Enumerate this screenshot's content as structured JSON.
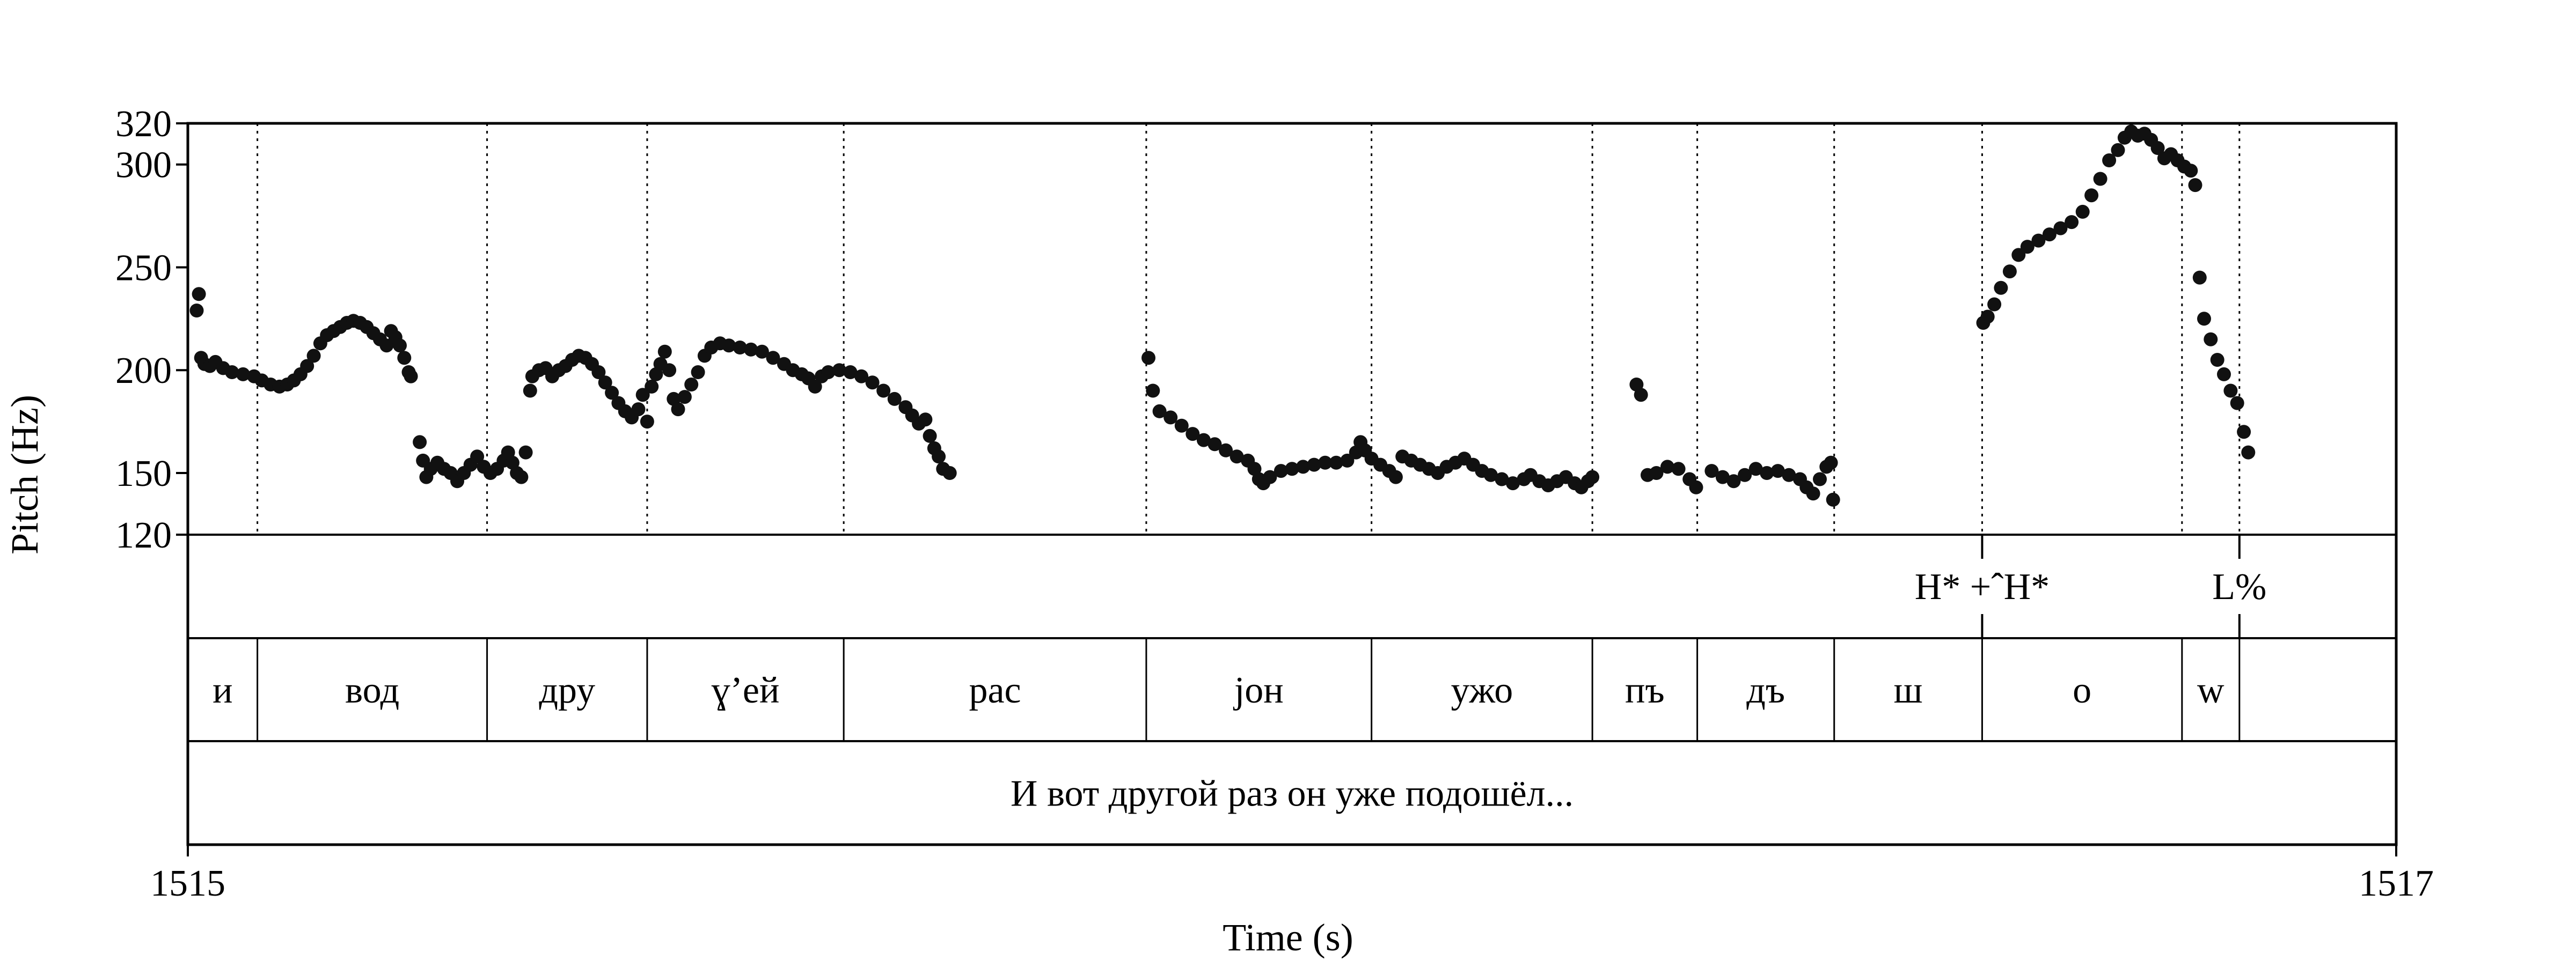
{
  "chart_data": {
    "type": "scatter",
    "xlabel": "Time (s)",
    "ylabel": "Pitch (Hz)",
    "xlim": [
      1515,
      1517
    ],
    "ylim": [
      120,
      320
    ],
    "x_ticks": [
      "1515",
      "1517"
    ],
    "y_ticks": [
      120,
      150,
      200,
      250,
      300,
      320
    ],
    "grid": false,
    "boundaries": [
      1515.063,
      1515.271,
      1515.416,
      1515.594,
      1515.868,
      1516.072,
      1516.272,
      1516.367,
      1516.491,
      1516.625,
      1516.806,
      1516.858
    ],
    "tones": [
      {
        "label": "H* +ˆH*",
        "time": 1516.625
      },
      {
        "label": "L%",
        "time": 1516.858
      }
    ],
    "syllables": [
      {
        "label": "и",
        "start": 1515.0,
        "end": 1515.063
      },
      {
        "label": "вод",
        "start": 1515.063,
        "end": 1515.271
      },
      {
        "label": "дру",
        "start": 1515.271,
        "end": 1515.416
      },
      {
        "label": "ɣ’ей",
        "start": 1515.416,
        "end": 1515.594
      },
      {
        "label": "рас",
        "start": 1515.594,
        "end": 1515.868
      },
      {
        "label": "jон",
        "start": 1515.868,
        "end": 1516.072
      },
      {
        "label": "ужо",
        "start": 1516.072,
        "end": 1516.272
      },
      {
        "label": "пъ",
        "start": 1516.272,
        "end": 1516.367
      },
      {
        "label": "дъ",
        "start": 1516.367,
        "end": 1516.491
      },
      {
        "label": "ш",
        "start": 1516.491,
        "end": 1516.625
      },
      {
        "label": "о",
        "start": 1516.625,
        "end": 1516.806
      },
      {
        "label": "w",
        "start": 1516.806,
        "end": 1516.858
      }
    ],
    "sentence": "И вот другой раз он уже подошёл...",
    "series": [
      {
        "points": [
          [
            1515.008,
            229
          ],
          [
            1515.01,
            237
          ],
          [
            1515.012,
            206
          ],
          [
            1515.015,
            203
          ],
          [
            1515.02,
            202
          ],
          [
            1515.025,
            204
          ],
          [
            1515.032,
            201
          ],
          [
            1515.04,
            199
          ],
          [
            1515.05,
            198
          ],
          [
            1515.06,
            197
          ],
          [
            1515.067,
            195
          ],
          [
            1515.075,
            193
          ],
          [
            1515.083,
            192
          ],
          [
            1515.09,
            193
          ],
          [
            1515.096,
            195
          ],
          [
            1515.102,
            198
          ],
          [
            1515.108,
            202
          ],
          [
            1515.114,
            207
          ],
          [
            1515.12,
            213
          ],
          [
            1515.126,
            217
          ],
          [
            1515.132,
            219
          ],
          [
            1515.138,
            221
          ],
          [
            1515.144,
            223
          ],
          [
            1515.15,
            224
          ],
          [
            1515.156,
            223
          ],
          [
            1515.162,
            221
          ],
          [
            1515.168,
            218
          ],
          [
            1515.174,
            215
          ],
          [
            1515.18,
            212
          ],
          [
            1515.184,
            219
          ],
          [
            1515.188,
            216
          ],
          [
            1515.192,
            212
          ],
          [
            1515.196,
            206
          ],
          [
            1515.2,
            199
          ],
          [
            1515.202,
            197
          ],
          [
            1515.21,
            165
          ],
          [
            1515.213,
            156
          ],
          [
            1515.216,
            148
          ],
          [
            1515.22,
            152
          ],
          [
            1515.226,
            155
          ],
          [
            1515.232,
            152
          ],
          [
            1515.238,
            150
          ],
          [
            1515.244,
            146
          ],
          [
            1515.25,
            150
          ],
          [
            1515.256,
            154
          ],
          [
            1515.262,
            158
          ],
          [
            1515.268,
            153
          ],
          [
            1515.274,
            150
          ],
          [
            1515.28,
            152
          ],
          [
            1515.286,
            156
          ],
          [
            1515.29,
            160
          ],
          [
            1515.294,
            155
          ],
          [
            1515.298,
            150
          ],
          [
            1515.302,
            148
          ],
          [
            1515.306,
            160
          ],
          [
            1515.31,
            190
          ],
          [
            1515.312,
            197
          ],
          [
            1515.318,
            200
          ],
          [
            1515.324,
            201
          ],
          [
            1515.33,
            197
          ],
          [
            1515.336,
            200
          ],
          [
            1515.342,
            202
          ],
          [
            1515.348,
            205
          ],
          [
            1515.354,
            207
          ],
          [
            1515.36,
            206
          ],
          [
            1515.366,
            203
          ],
          [
            1515.372,
            199
          ],
          [
            1515.378,
            194
          ],
          [
            1515.384,
            189
          ],
          [
            1515.39,
            184
          ],
          [
            1515.396,
            180
          ],
          [
            1515.402,
            177
          ],
          [
            1515.408,
            181
          ],
          [
            1515.412,
            188
          ],
          [
            1515.416,
            175
          ],
          [
            1515.42,
            192
          ],
          [
            1515.424,
            198
          ],
          [
            1515.428,
            203
          ],
          [
            1515.432,
            209
          ],
          [
            1515.436,
            200
          ],
          [
            1515.44,
            186
          ],
          [
            1515.444,
            181
          ],
          [
            1515.45,
            187
          ],
          [
            1515.456,
            193
          ],
          [
            1515.462,
            199
          ],
          [
            1515.468,
            207
          ],
          [
            1515.474,
            211
          ],
          [
            1515.482,
            213
          ],
          [
            1515.49,
            212
          ],
          [
            1515.5,
            211
          ],
          [
            1515.51,
            210
          ],
          [
            1515.52,
            209
          ],
          [
            1515.53,
            206
          ],
          [
            1515.54,
            203
          ],
          [
            1515.548,
            200
          ],
          [
            1515.556,
            198
          ],
          [
            1515.562,
            196
          ],
          [
            1515.568,
            192
          ],
          [
            1515.574,
            197
          ],
          [
            1515.58,
            199
          ],
          [
            1515.59,
            200
          ],
          [
            1515.6,
            199
          ],
          [
            1515.61,
            197
          ],
          [
            1515.62,
            194
          ],
          [
            1515.63,
            190
          ],
          [
            1515.64,
            186
          ],
          [
            1515.65,
            182
          ],
          [
            1515.656,
            178
          ],
          [
            1515.662,
            174
          ],
          [
            1515.668,
            176
          ],
          [
            1515.672,
            168
          ],
          [
            1515.676,
            162
          ],
          [
            1515.68,
            158
          ],
          [
            1515.684,
            152
          ],
          [
            1515.69,
            150
          ],
          [
            1515.87,
            206
          ],
          [
            1515.874,
            190
          ],
          [
            1515.88,
            180
          ],
          [
            1515.89,
            177
          ],
          [
            1515.9,
            173
          ],
          [
            1515.91,
            169
          ],
          [
            1515.92,
            166
          ],
          [
            1515.93,
            164
          ],
          [
            1515.94,
            161
          ],
          [
            1515.95,
            158
          ],
          [
            1515.96,
            156
          ],
          [
            1515.966,
            152
          ],
          [
            1515.97,
            147
          ],
          [
            1515.974,
            145
          ],
          [
            1515.98,
            148
          ],
          [
            1515.99,
            151
          ],
          [
            1516.0,
            152
          ],
          [
            1516.01,
            153
          ],
          [
            1516.02,
            154
          ],
          [
            1516.03,
            155
          ],
          [
            1516.04,
            155
          ],
          [
            1516.05,
            156
          ],
          [
            1516.058,
            160
          ],
          [
            1516.062,
            165
          ],
          [
            1516.066,
            161
          ],
          [
            1516.072,
            157
          ],
          [
            1516.08,
            154
          ],
          [
            1516.088,
            151
          ],
          [
            1516.094,
            148
          ],
          [
            1516.1,
            158
          ],
          [
            1516.108,
            156
          ],
          [
            1516.116,
            154
          ],
          [
            1516.124,
            152
          ],
          [
            1516.132,
            150
          ],
          [
            1516.14,
            153
          ],
          [
            1516.148,
            155
          ],
          [
            1516.156,
            157
          ],
          [
            1516.164,
            154
          ],
          [
            1516.172,
            151
          ],
          [
            1516.18,
            149
          ],
          [
            1516.19,
            147
          ],
          [
            1516.2,
            145
          ],
          [
            1516.21,
            147
          ],
          [
            1516.216,
            149
          ],
          [
            1516.224,
            146
          ],
          [
            1516.232,
            144
          ],
          [
            1516.24,
            146
          ],
          [
            1516.248,
            148
          ],
          [
            1516.256,
            145
          ],
          [
            1516.262,
            143
          ],
          [
            1516.268,
            146
          ],
          [
            1516.272,
            148
          ],
          [
            1516.312,
            193
          ],
          [
            1516.316,
            188
          ],
          [
            1516.322,
            149
          ],
          [
            1516.33,
            150
          ],
          [
            1516.34,
            153
          ],
          [
            1516.35,
            152
          ],
          [
            1516.36,
            147
          ],
          [
            1516.366,
            143
          ],
          [
            1516.38,
            151
          ],
          [
            1516.39,
            148
          ],
          [
            1516.4,
            146
          ],
          [
            1516.41,
            149
          ],
          [
            1516.42,
            152
          ],
          [
            1516.43,
            150
          ],
          [
            1516.44,
            151
          ],
          [
            1516.45,
            149
          ],
          [
            1516.46,
            147
          ],
          [
            1516.466,
            143
          ],
          [
            1516.472,
            140
          ],
          [
            1516.478,
            147
          ],
          [
            1516.484,
            153
          ],
          [
            1516.488,
            155
          ],
          [
            1516.49,
            137
          ],
          [
            1516.626,
            223
          ],
          [
            1516.63,
            226
          ],
          [
            1516.636,
            232
          ],
          [
            1516.642,
            240
          ],
          [
            1516.65,
            248
          ],
          [
            1516.658,
            256
          ],
          [
            1516.666,
            260
          ],
          [
            1516.676,
            263
          ],
          [
            1516.686,
            266
          ],
          [
            1516.696,
            269
          ],
          [
            1516.706,
            272
          ],
          [
            1516.716,
            277
          ],
          [
            1516.724,
            285
          ],
          [
            1516.732,
            293
          ],
          [
            1516.74,
            302
          ],
          [
            1516.748,
            307
          ],
          [
            1516.754,
            313
          ],
          [
            1516.76,
            316
          ],
          [
            1516.766,
            314
          ],
          [
            1516.772,
            315
          ],
          [
            1516.778,
            312
          ],
          [
            1516.784,
            308
          ],
          [
            1516.79,
            303
          ],
          [
            1516.796,
            305
          ],
          [
            1516.802,
            302
          ],
          [
            1516.808,
            299
          ],
          [
            1516.814,
            297
          ],
          [
            1516.818,
            290
          ],
          [
            1516.822,
            245
          ],
          [
            1516.826,
            225
          ],
          [
            1516.832,
            215
          ],
          [
            1516.838,
            205
          ],
          [
            1516.844,
            198
          ],
          [
            1516.85,
            190
          ],
          [
            1516.856,
            184
          ],
          [
            1516.862,
            170
          ],
          [
            1516.866,
            160
          ]
        ]
      }
    ]
  }
}
